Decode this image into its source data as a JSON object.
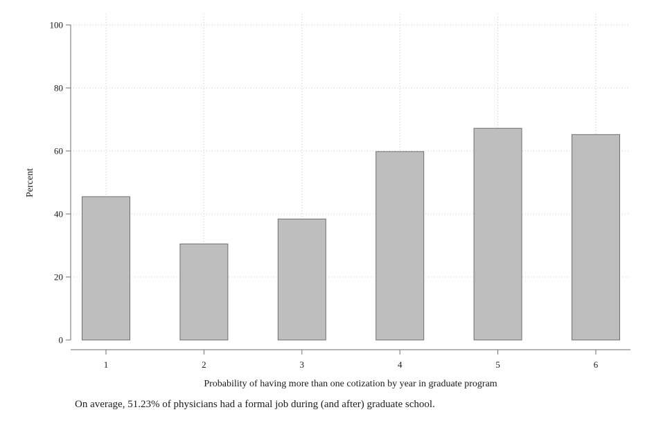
{
  "chart_data": {
    "type": "bar",
    "categories": [
      "1",
      "2",
      "3",
      "4",
      "5",
      "6"
    ],
    "values": [
      45.5,
      30.5,
      38.4,
      59.8,
      67.2,
      65.2
    ],
    "xlabel": "Probability of having more than one cotization by year in graduate program",
    "ylabel": "Percent",
    "ylim": [
      0,
      100
    ],
    "yticks": [
      0,
      20,
      40,
      60,
      80,
      100
    ],
    "grid": true,
    "colors": {
      "bar_fill": "#bebebe",
      "bar_stroke": "#6e6e6e",
      "axis": "#6e6e6e",
      "grid": "#c8c8c8"
    }
  },
  "note": "On average, 51.23% of physicians had a formal job during (and after) graduate school."
}
